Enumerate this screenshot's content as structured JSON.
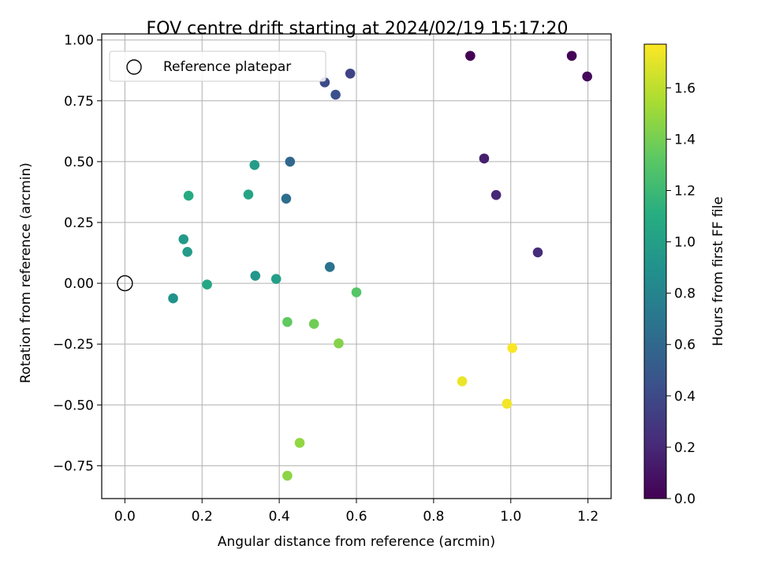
{
  "chart_data": {
    "type": "scatter",
    "title": "FOV centre drift starting at 2024/02/19 15:17:20",
    "xlabel": "Angular distance from reference (arcmin)",
    "ylabel": "Rotation from reference (arcmin)",
    "xlim": [
      -0.06,
      1.26
    ],
    "ylim": [
      -0.885,
      1.025
    ],
    "x_ticks": [
      0.0,
      0.2,
      0.4,
      0.6,
      0.8,
      1.0,
      1.2
    ],
    "x_tick_labels": [
      "0.0",
      "0.2",
      "0.4",
      "0.6",
      "0.8",
      "1.0",
      "1.2"
    ],
    "y_ticks": [
      1.0,
      0.75,
      0.5,
      0.25,
      0.0,
      -0.25,
      -0.5,
      -0.75
    ],
    "y_tick_labels": [
      "1.00",
      "0.75",
      "0.50",
      "0.25",
      "0.00",
      "−0.25",
      "−0.50",
      "−0.75"
    ],
    "grid": true,
    "legend": {
      "placement": "upper-left",
      "entries": [
        {
          "label": "Reference platepar",
          "marker": "open-circle"
        }
      ]
    },
    "reference_point": {
      "x": 0.0,
      "y": 0.0
    },
    "colorbar": {
      "label": "Hours from first FF file",
      "colormap": "viridis",
      "range": [
        0.0,
        1.77
      ],
      "ticks": [
        0.0,
        0.2,
        0.4,
        0.6,
        0.8,
        1.0,
        1.2,
        1.4,
        1.6
      ],
      "tick_labels": [
        "0.0",
        "0.2",
        "0.4",
        "0.6",
        "0.8",
        "1.0",
        "1.2",
        "1.4",
        "1.6"
      ]
    },
    "points": [
      {
        "x": 0.895,
        "y": 0.935,
        "hours": 0.0
      },
      {
        "x": 1.158,
        "y": 0.935,
        "hours": 0.02
      },
      {
        "x": 1.198,
        "y": 0.85,
        "hours": 0.04
      },
      {
        "x": 0.931,
        "y": 0.513,
        "hours": 0.16
      },
      {
        "x": 0.962,
        "y": 0.363,
        "hours": 0.2
      },
      {
        "x": 1.07,
        "y": 0.127,
        "hours": 0.22
      },
      {
        "x": 0.584,
        "y": 0.862,
        "hours": 0.36
      },
      {
        "x": 0.518,
        "y": 0.826,
        "hours": 0.4
      },
      {
        "x": 0.546,
        "y": 0.775,
        "hours": 0.44
      },
      {
        "x": 0.428,
        "y": 0.5,
        "hours": 0.6
      },
      {
        "x": 0.418,
        "y": 0.348,
        "hours": 0.64
      },
      {
        "x": 0.531,
        "y": 0.067,
        "hours": 0.68
      },
      {
        "x": 0.336,
        "y": 0.486,
        "hours": 0.98
      },
      {
        "x": 0.32,
        "y": 0.365,
        "hours": 1.04
      },
      {
        "x": 0.165,
        "y": 0.36,
        "hours": 1.08
      },
      {
        "x": 0.152,
        "y": 0.181,
        "hours": 0.96
      },
      {
        "x": 0.162,
        "y": 0.129,
        "hours": 0.98
      },
      {
        "x": 0.338,
        "y": 0.031,
        "hours": 0.94
      },
      {
        "x": 0.392,
        "y": 0.018,
        "hours": 1.0
      },
      {
        "x": 0.213,
        "y": -0.005,
        "hours": 1.06
      },
      {
        "x": 0.125,
        "y": -0.062,
        "hours": 0.9
      },
      {
        "x": 0.6,
        "y": -0.037,
        "hours": 1.3
      },
      {
        "x": 0.421,
        "y": -0.159,
        "hours": 1.34
      },
      {
        "x": 0.49,
        "y": -0.167,
        "hours": 1.38
      },
      {
        "x": 0.554,
        "y": -0.247,
        "hours": 1.44
      },
      {
        "x": 0.453,
        "y": -0.656,
        "hours": 1.48
      },
      {
        "x": 0.421,
        "y": -0.791,
        "hours": 1.46
      },
      {
        "x": 0.874,
        "y": -0.403,
        "hours": 1.72
      },
      {
        "x": 0.99,
        "y": -0.495,
        "hours": 1.74
      },
      {
        "x": 1.004,
        "y": -0.266,
        "hours": 1.76
      }
    ]
  }
}
